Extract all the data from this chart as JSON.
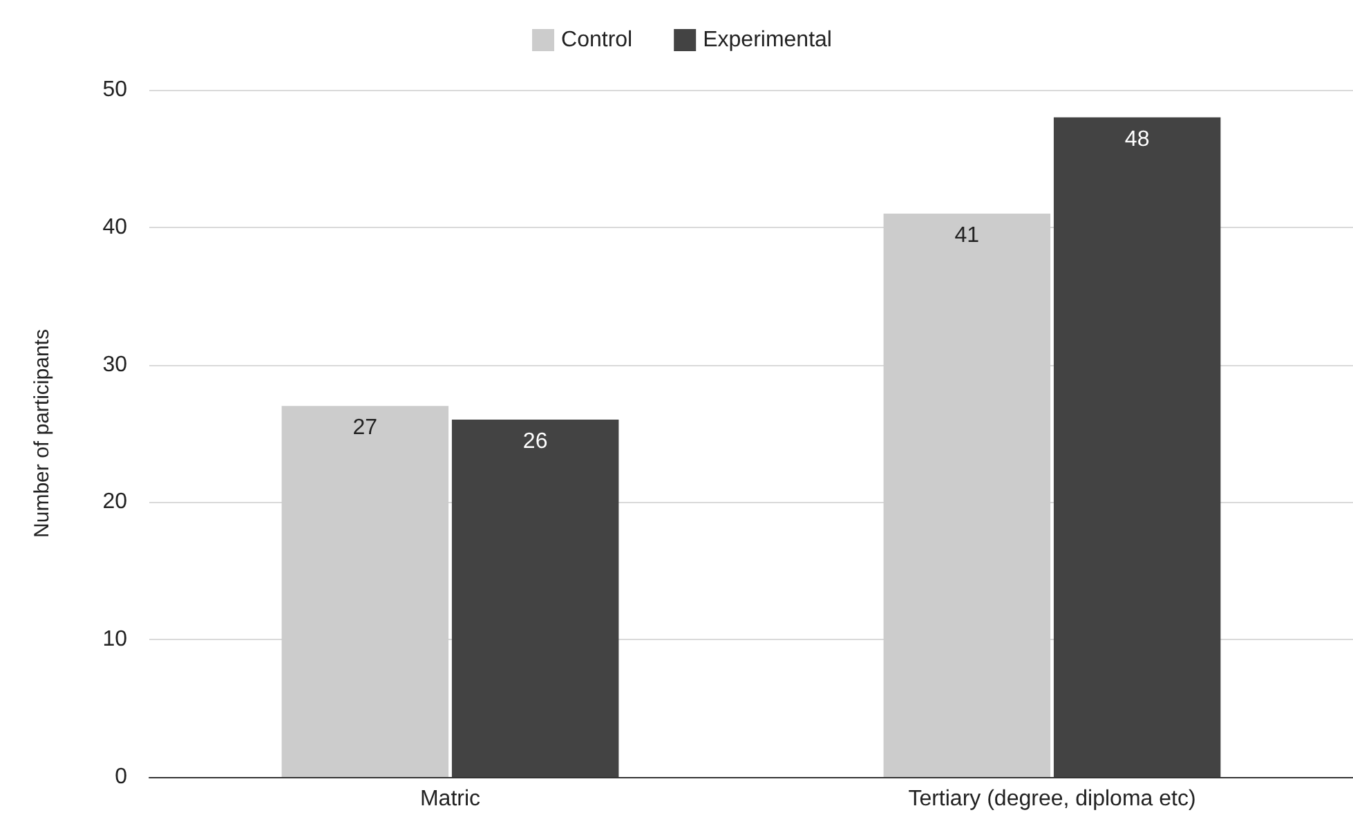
{
  "chart_data": {
    "type": "bar",
    "categories": [
      "Matric",
      "Tertiary (degree, diploma etc)"
    ],
    "series": [
      {
        "name": "Control",
        "color": "#cccccc",
        "values": [
          27,
          41
        ]
      },
      {
        "name": "Experimental",
        "color": "#434343",
        "values": [
          26,
          48
        ]
      }
    ],
    "ylabel": "Number of participants",
    "ylim": [
      0,
      50
    ],
    "yticks": [
      0,
      10,
      20,
      30,
      40,
      50
    ],
    "grid": "y",
    "legend": "top",
    "data_labels": true
  }
}
